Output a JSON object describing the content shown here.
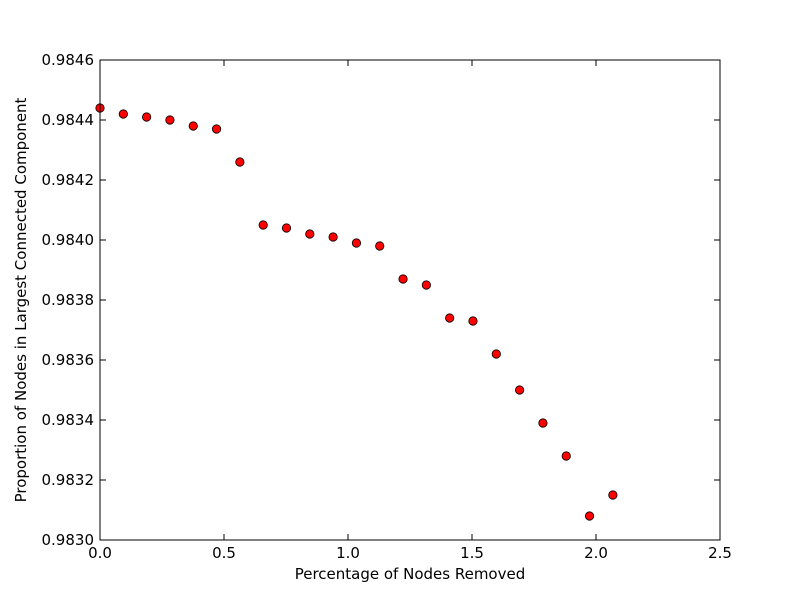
{
  "chart_data": {
    "type": "scatter",
    "title": "",
    "xlabel": "Percentage of Nodes Removed",
    "ylabel": "Proportion of Nodes in Largest Connected Component",
    "xlim": [
      0.0,
      2.5
    ],
    "ylim": [
      0.983,
      0.9846
    ],
    "x_ticks": [
      "0.0",
      "0.5",
      "1.0",
      "1.5",
      "2.0",
      "2.5"
    ],
    "x_tick_values": [
      0.0,
      0.5,
      1.0,
      1.5,
      2.0,
      2.5
    ],
    "y_ticks": [
      "0.9830",
      "0.9832",
      "0.9834",
      "0.9836",
      "0.9838",
      "0.9840",
      "0.9842",
      "0.9844",
      "0.9846"
    ],
    "y_tick_values": [
      0.983,
      0.9832,
      0.9834,
      0.9836,
      0.9838,
      0.984,
      0.9842,
      0.9844,
      0.9846
    ],
    "grid": false,
    "marker_color": "#ff0000",
    "marker_edge_color": "#000000",
    "points": [
      {
        "x": 0.0,
        "y": 0.98444
      },
      {
        "x": 0.094,
        "y": 0.98442
      },
      {
        "x": 0.188,
        "y": 0.98441
      },
      {
        "x": 0.282,
        "y": 0.9844
      },
      {
        "x": 0.376,
        "y": 0.98438
      },
      {
        "x": 0.47,
        "y": 0.98437
      },
      {
        "x": 0.564,
        "y": 0.98426
      },
      {
        "x": 0.658,
        "y": 0.98405
      },
      {
        "x": 0.752,
        "y": 0.98404
      },
      {
        "x": 0.846,
        "y": 0.98402
      },
      {
        "x": 0.94,
        "y": 0.98401
      },
      {
        "x": 1.034,
        "y": 0.98399
      },
      {
        "x": 1.128,
        "y": 0.98398
      },
      {
        "x": 1.222,
        "y": 0.98387
      },
      {
        "x": 1.316,
        "y": 0.98385
      },
      {
        "x": 1.41,
        "y": 0.98374
      },
      {
        "x": 1.504,
        "y": 0.98373
      },
      {
        "x": 1.598,
        "y": 0.98362
      },
      {
        "x": 1.692,
        "y": 0.9835
      },
      {
        "x": 1.786,
        "y": 0.98339
      },
      {
        "x": 1.88,
        "y": 0.98328
      },
      {
        "x": 1.974,
        "y": 0.98308
      },
      {
        "x": 2.068,
        "y": 0.98315
      }
    ]
  }
}
